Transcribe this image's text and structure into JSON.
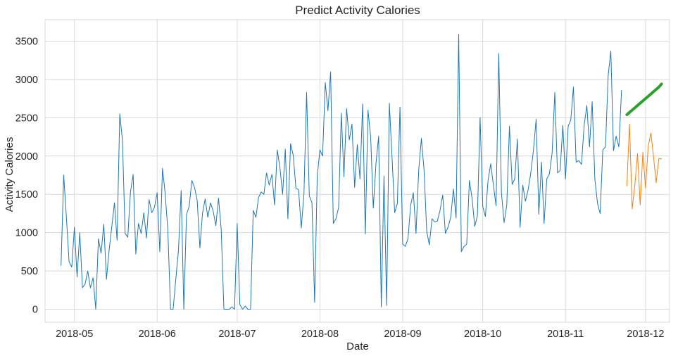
{
  "chart_data": {
    "type": "line",
    "title": "Predict Activity Calories",
    "xlabel": "Date",
    "ylabel": "Activity Calories",
    "x_range": [
      "2018-04-20",
      "2018-12-10"
    ],
    "ylim": [
      -170,
      3780
    ],
    "grid": true,
    "legend": "none",
    "x_ticks": [
      {
        "date": "2018-05-01",
        "label": "2018-05"
      },
      {
        "date": "2018-06-01",
        "label": "2018-06"
      },
      {
        "date": "2018-07-01",
        "label": "2018-07"
      },
      {
        "date": "2018-08-01",
        "label": "2018-08"
      },
      {
        "date": "2018-09-01",
        "label": "2018-09"
      },
      {
        "date": "2018-10-01",
        "label": "2018-10"
      },
      {
        "date": "2018-11-01",
        "label": "2018-11"
      },
      {
        "date": "2018-12-01",
        "label": "2018-12"
      }
    ],
    "y_ticks": [
      0,
      500,
      1000,
      1500,
      2000,
      2500,
      3000,
      3500
    ],
    "series": [
      {
        "color": "#1f77b4",
        "line_width": 1,
        "start_date": "2018-04-26",
        "values": [
          570,
          1750,
          1200,
          620,
          550,
          1070,
          420,
          1000,
          280,
          330,
          500,
          280,
          410,
          0,
          920,
          730,
          1110,
          390,
          770,
          1080,
          1390,
          900,
          2550,
          2210,
          990,
          940,
          1530,
          1760,
          720,
          1120,
          990,
          1260,
          930,
          1430,
          1260,
          1330,
          1520,
          750,
          1840,
          1510,
          1030,
          0,
          0,
          390,
          770,
          1550,
          0,
          1240,
          1340,
          1680,
          1590,
          1420,
          800,
          1250,
          1440,
          1200,
          1390,
          1280,
          1090,
          1450,
          1040,
          0,
          0,
          0,
          30,
          0,
          1120,
          60,
          0,
          40,
          0,
          0,
          1290,
          1200,
          1460,
          1530,
          1500,
          1780,
          1620,
          1760,
          1360,
          2080,
          1850,
          1500,
          2090,
          1180,
          2160,
          2010,
          1580,
          1560,
          1060,
          1500,
          2830,
          1480,
          1390,
          90,
          1740,
          2080,
          2000,
          2960,
          2590,
          3100,
          1120,
          1180,
          1330,
          2560,
          1730,
          2620,
          2210,
          2420,
          1590,
          2150,
          1700,
          2680,
          980,
          2600,
          2250,
          1320,
          1900,
          2260,
          30,
          1740,
          50,
          2690,
          1990,
          1260,
          1380,
          2640,
          850,
          820,
          920,
          1360,
          1520,
          990,
          1810,
          2230,
          1820,
          1020,
          840,
          1180,
          1140,
          1150,
          1290,
          1490,
          990,
          1070,
          1200,
          1570,
          1190,
          3590,
          750,
          820,
          850,
          1680,
          1450,
          1080,
          1220,
          2500,
          1340,
          1210,
          1680,
          1900,
          1620,
          1350,
          3340,
          1520,
          1130,
          1360,
          2390,
          1630,
          1700,
          2220,
          1070,
          1620,
          1410,
          1560,
          1780,
          2080,
          2480,
          1240,
          1920,
          1120,
          1700,
          1770,
          2040,
          2830,
          1780,
          1810,
          2400,
          1700,
          2390,
          2470,
          2900,
          1920,
          1940,
          1890,
          2400,
          2660,
          2120,
          2710,
          1700,
          1380,
          1250,
          2080,
          2120,
          3050,
          3370,
          2070,
          2260,
          2120,
          2860
        ]
      },
      {
        "color": "#ff7f0e",
        "line_width": 1,
        "start_date": "2018-11-24",
        "values": [
          1610,
          2420,
          1310,
          1620,
          2030,
          1360,
          2050,
          1580,
          2130,
          2300,
          1990,
          1650,
          1970,
          1960
        ]
      },
      {
        "color": "#2ca02c",
        "line_width": 4,
        "start_date": "2018-11-24",
        "values": [
          2540,
          2570,
          2600,
          2630,
          2660,
          2690,
          2720,
          2750,
          2780,
          2810,
          2840,
          2870,
          2900,
          2940
        ]
      }
    ]
  }
}
